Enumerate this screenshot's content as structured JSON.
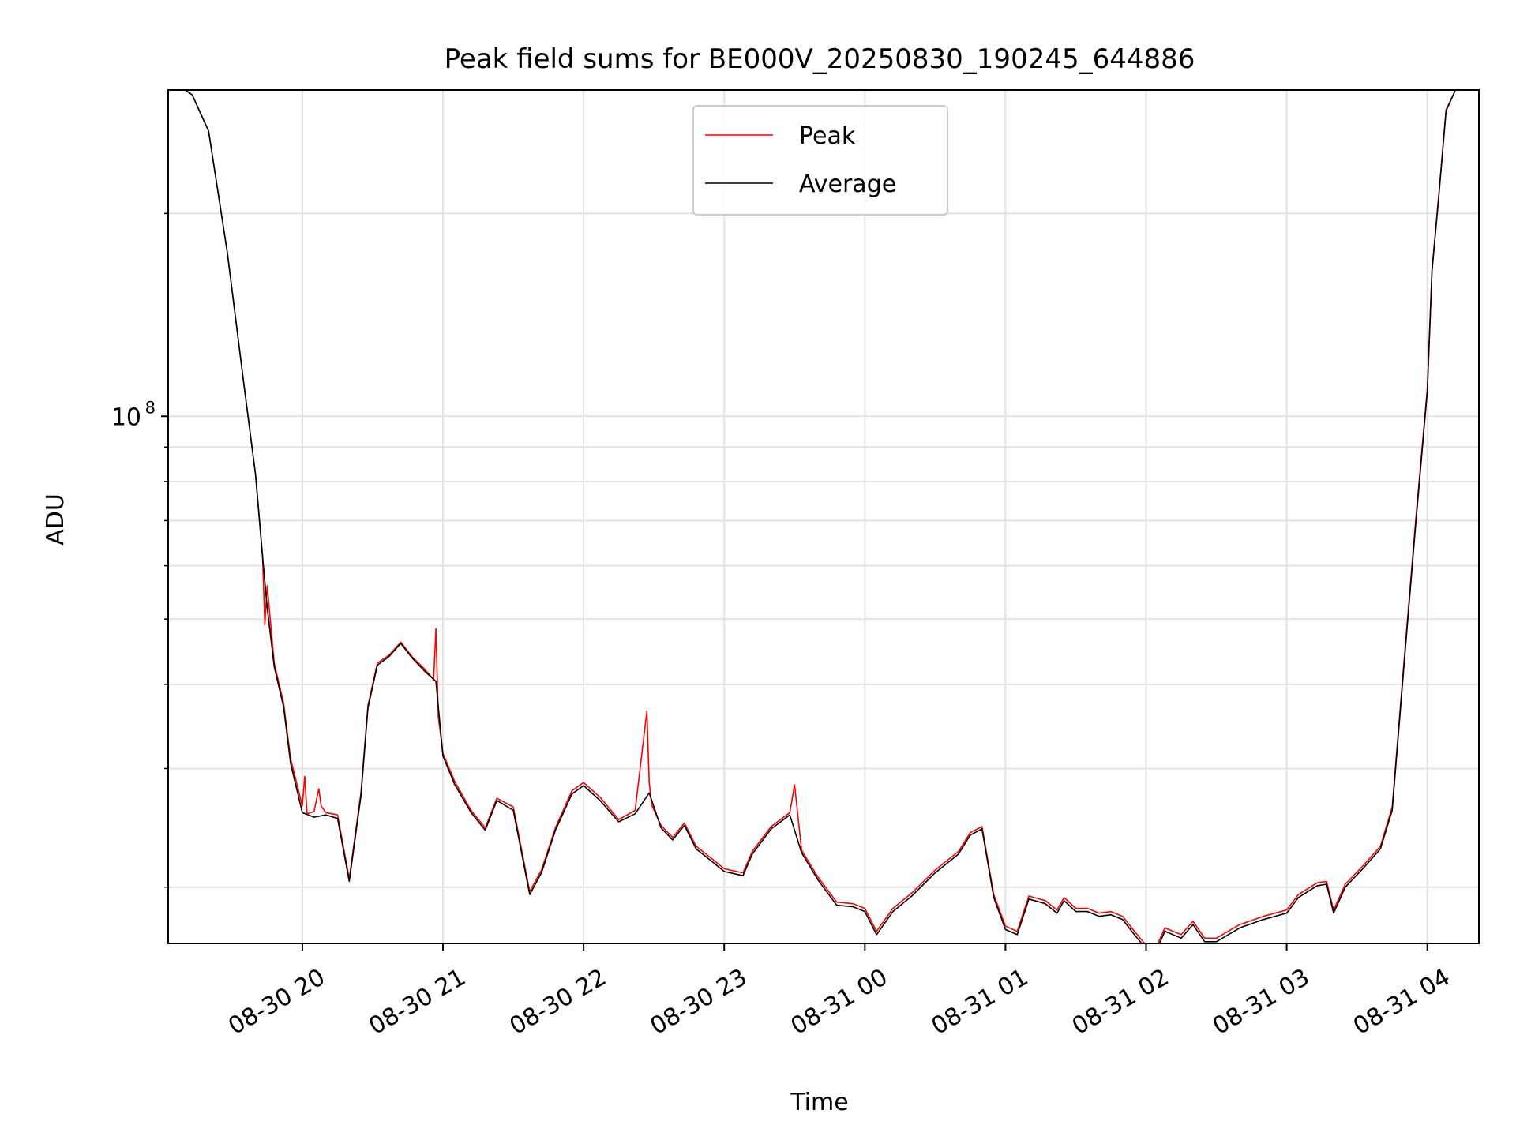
{
  "chart_data": {
    "type": "line",
    "title": "Peak field sums for BE000V_20250830_190245_644886",
    "xlabel": "Time",
    "ylabel": "ADU",
    "yscale": "log",
    "ylim": [
      16500000,
      305000000
    ],
    "xlim": [
      "2025-08-30 19:02:45",
      "2025-08-31 04:22:00"
    ],
    "x_ticks": [
      {
        "value": "2025-08-30 20:00",
        "label": "08-30 20"
      },
      {
        "value": "2025-08-30 21:00",
        "label": "08-30 21"
      },
      {
        "value": "2025-08-30 22:00",
        "label": "08-30 22"
      },
      {
        "value": "2025-08-30 23:00",
        "label": "08-30 23"
      },
      {
        "value": "2025-08-31 00:00",
        "label": "08-31 00"
      },
      {
        "value": "2025-08-31 01:00",
        "label": "08-31 01"
      },
      {
        "value": "2025-08-31 02:00",
        "label": "08-31 02"
      },
      {
        "value": "2025-08-31 03:00",
        "label": "08-31 03"
      },
      {
        "value": "2025-08-31 04:00",
        "label": "08-31 04"
      }
    ],
    "y_major_ticks": [
      {
        "value": 100000000,
        "base": "10",
        "exponent": "8"
      }
    ],
    "y_minor_ticks": [
      20000000,
      30000000,
      40000000,
      50000000,
      60000000,
      70000000,
      80000000,
      90000000,
      200000000
    ],
    "grid": true,
    "legend_position": "upper center",
    "series": [
      {
        "name": "Peak",
        "color": "#ff0000",
        "x": [
          "2025-08-30 19:02:45",
          "2025-08-30 19:10",
          "2025-08-30 19:13",
          "2025-08-30 19:20",
          "2025-08-30 19:28",
          "2025-08-30 19:35",
          "2025-08-30 19:40",
          "2025-08-30 19:43",
          "2025-08-30 19:44",
          "2025-08-30 19:45",
          "2025-08-30 19:48",
          "2025-08-30 19:52",
          "2025-08-30 19:55",
          "2025-08-30 20:00",
          "2025-08-30 20:01",
          "2025-08-30 20:02",
          "2025-08-30 20:05",
          "2025-08-30 20:07",
          "2025-08-30 20:08",
          "2025-08-30 20:10",
          "2025-08-30 20:15",
          "2025-08-30 20:20",
          "2025-08-30 20:25",
          "2025-08-30 20:28",
          "2025-08-30 20:32",
          "2025-08-30 20:37",
          "2025-08-30 20:42",
          "2025-08-30 20:47",
          "2025-08-30 20:52",
          "2025-08-30 20:56",
          "2025-08-30 20:57",
          "2025-08-30 20:58",
          "2025-08-30 21:00",
          "2025-08-30 21:05",
          "2025-08-30 21:12",
          "2025-08-30 21:18",
          "2025-08-30 21:23",
          "2025-08-30 21:30",
          "2025-08-30 21:37",
          "2025-08-30 21:42",
          "2025-08-30 21:48",
          "2025-08-30 21:55",
          "2025-08-30 22:00",
          "2025-08-30 22:07",
          "2025-08-30 22:15",
          "2025-08-30 22:22",
          "2025-08-30 22:27",
          "2025-08-30 22:28",
          "2025-08-30 22:29",
          "2025-08-30 22:33",
          "2025-08-30 22:38",
          "2025-08-30 22:43",
          "2025-08-30 22:48",
          "2025-08-30 22:55",
          "2025-08-30 23:00",
          "2025-08-30 23:08",
          "2025-08-30 23:12",
          "2025-08-30 23:20",
          "2025-08-30 23:28",
          "2025-08-30 23:30",
          "2025-08-30 23:33",
          "2025-08-30 23:40",
          "2025-08-30 23:48",
          "2025-08-30 23:55",
          "2025-08-31 00:00",
          "2025-08-31 00:05",
          "2025-08-31 00:12",
          "2025-08-31 00:20",
          "2025-08-31 00:30",
          "2025-08-31 00:40",
          "2025-08-31 00:45",
          "2025-08-31 00:50",
          "2025-08-31 00:55",
          "2025-08-31 01:00",
          "2025-08-31 01:05",
          "2025-08-31 01:10",
          "2025-08-31 01:17",
          "2025-08-31 01:22",
          "2025-08-31 01:25",
          "2025-08-31 01:30",
          "2025-08-31 01:35",
          "2025-08-31 01:40",
          "2025-08-31 01:45",
          "2025-08-31 01:50",
          "2025-08-31 01:55",
          "2025-08-31 02:00",
          "2025-08-31 02:03",
          "2025-08-31 02:08",
          "2025-08-31 02:15",
          "2025-08-31 02:20",
          "2025-08-31 02:25",
          "2025-08-31 02:30",
          "2025-08-31 02:40",
          "2025-08-31 02:50",
          "2025-08-31 03:00",
          "2025-08-31 03:05",
          "2025-08-31 03:13",
          "2025-08-31 03:17",
          "2025-08-31 03:20",
          "2025-08-31 03:25",
          "2025-08-31 03:33",
          "2025-08-31 03:40",
          "2025-08-31 03:45",
          "2025-08-31 03:50",
          "2025-08-31 03:55",
          "2025-08-31 04:00",
          "2025-08-31 04:02",
          "2025-08-31 04:05",
          "2025-08-31 04:08",
          "2025-08-31 04:12"
        ],
        "values": [
          305000000,
          305000000,
          300000000,
          265000000,
          175000000,
          112000000,
          82000000,
          62000000,
          49000000,
          56000000,
          43000000,
          37500000,
          31000000,
          26400000,
          29200000,
          25700000,
          25900000,
          28000000,
          26400000,
          25800000,
          25600000,
          20600000,
          27600000,
          37200000,
          43000000,
          44200000,
          46200000,
          43900000,
          42200000,
          40700000,
          48400000,
          35800000,
          31600000,
          28700000,
          26000000,
          24500000,
          27100000,
          26300000,
          19700000,
          21200000,
          24500000,
          27800000,
          28600000,
          27200000,
          25200000,
          26000000,
          36500000,
          28600000,
          26500000,
          24700000,
          23700000,
          24900000,
          23000000,
          22000000,
          21300000,
          21000000,
          22600000,
          24600000,
          25800000,
          28400000,
          22700000,
          20700000,
          19000000,
          18900000,
          18600000,
          17200000,
          18600000,
          19600000,
          21200000,
          22600000,
          24100000,
          24600000,
          19500000,
          17500000,
          17200000,
          19400000,
          19100000,
          18500000,
          19300000,
          18600000,
          18600000,
          18300000,
          18400000,
          18100000,
          17200000,
          16400000,
          15900000,
          17400000,
          17000000,
          17800000,
          16800000,
          16800000,
          17600000,
          18100000,
          18500000,
          19500000,
          20300000,
          20400000,
          18500000,
          20200000,
          21600000,
          23000000,
          26300000,
          43000000,
          70000000,
          110000000,
          165000000,
          215000000,
          285000000,
          305000000
        ]
      },
      {
        "name": "Average",
        "color": "#000000",
        "x": [
          "2025-08-30 19:02:45",
          "2025-08-30 19:10",
          "2025-08-30 19:13",
          "2025-08-30 19:20",
          "2025-08-30 19:28",
          "2025-08-30 19:35",
          "2025-08-30 19:40",
          "2025-08-30 19:43",
          "2025-08-30 19:45",
          "2025-08-30 19:48",
          "2025-08-30 19:52",
          "2025-08-30 19:55",
          "2025-08-30 20:00",
          "2025-08-30 20:05",
          "2025-08-30 20:10",
          "2025-08-30 20:15",
          "2025-08-30 20:20",
          "2025-08-30 20:25",
          "2025-08-30 20:28",
          "2025-08-30 20:32",
          "2025-08-30 20:37",
          "2025-08-30 20:42",
          "2025-08-30 20:47",
          "2025-08-30 20:52",
          "2025-08-30 20:57",
          "2025-08-30 21:00",
          "2025-08-30 21:05",
          "2025-08-30 21:12",
          "2025-08-30 21:18",
          "2025-08-30 21:23",
          "2025-08-30 21:30",
          "2025-08-30 21:37",
          "2025-08-30 21:42",
          "2025-08-30 21:48",
          "2025-08-30 21:55",
          "2025-08-30 22:00",
          "2025-08-30 22:07",
          "2025-08-30 22:15",
          "2025-08-30 22:22",
          "2025-08-30 22:28",
          "2025-08-30 22:33",
          "2025-08-30 22:38",
          "2025-08-30 22:43",
          "2025-08-30 22:48",
          "2025-08-30 22:55",
          "2025-08-30 23:00",
          "2025-08-30 23:08",
          "2025-08-30 23:12",
          "2025-08-30 23:20",
          "2025-08-30 23:28",
          "2025-08-30 23:33",
          "2025-08-30 23:40",
          "2025-08-30 23:48",
          "2025-08-30 23:55",
          "2025-08-31 00:00",
          "2025-08-31 00:05",
          "2025-08-31 00:12",
          "2025-08-31 00:20",
          "2025-08-31 00:30",
          "2025-08-31 00:40",
          "2025-08-31 00:45",
          "2025-08-31 00:50",
          "2025-08-31 00:55",
          "2025-08-31 01:00",
          "2025-08-31 01:05",
          "2025-08-31 01:10",
          "2025-08-31 01:17",
          "2025-08-31 01:22",
          "2025-08-31 01:25",
          "2025-08-31 01:30",
          "2025-08-31 01:35",
          "2025-08-31 01:40",
          "2025-08-31 01:45",
          "2025-08-31 01:50",
          "2025-08-31 01:55",
          "2025-08-31 02:00",
          "2025-08-31 02:03",
          "2025-08-31 02:08",
          "2025-08-31 02:15",
          "2025-08-31 02:20",
          "2025-08-31 02:25",
          "2025-08-31 02:30",
          "2025-08-31 02:40",
          "2025-08-31 02:50",
          "2025-08-31 03:00",
          "2025-08-31 03:05",
          "2025-08-31 03:13",
          "2025-08-31 03:17",
          "2025-08-31 03:20",
          "2025-08-31 03:25",
          "2025-08-31 03:33",
          "2025-08-31 03:40",
          "2025-08-31 03:45",
          "2025-08-31 03:50",
          "2025-08-31 03:55",
          "2025-08-31 04:00",
          "2025-08-31 04:02",
          "2025-08-31 04:05",
          "2025-08-31 04:08",
          "2025-08-31 04:12"
        ],
        "values": [
          305000000,
          305000000,
          300000000,
          265000000,
          175000000,
          112000000,
          82000000,
          62000000,
          52000000,
          42500000,
          37000000,
          30500000,
          25800000,
          25400000,
          25600000,
          25300000,
          20400000,
          27300000,
          36900000,
          42700000,
          44000000,
          46000000,
          43700000,
          41900000,
          40400000,
          31300000,
          28400000,
          25800000,
          24300000,
          26900000,
          26000000,
          19500000,
          21000000,
          24300000,
          27500000,
          28300000,
          26900000,
          25000000,
          25700000,
          27600000,
          24500000,
          23500000,
          24700000,
          22800000,
          21800000,
          21100000,
          20800000,
          22400000,
          24400000,
          25600000,
          22500000,
          20500000,
          18800000,
          18700000,
          18400000,
          17000000,
          18400000,
          19400000,
          21000000,
          22400000,
          23900000,
          24400000,
          19300000,
          17300000,
          17000000,
          19200000,
          18900000,
          18300000,
          19100000,
          18400000,
          18400000,
          18100000,
          18200000,
          17900000,
          17000000,
          16200000,
          15700000,
          17200000,
          16800000,
          17600000,
          16600000,
          16600000,
          17400000,
          17900000,
          18300000,
          19300000,
          20100000,
          20200000,
          18300000,
          20000000,
          21400000,
          22800000,
          26000000,
          42500000,
          69000000,
          109000000,
          164000000,
          214000000,
          284000000,
          305000000
        ]
      }
    ]
  }
}
